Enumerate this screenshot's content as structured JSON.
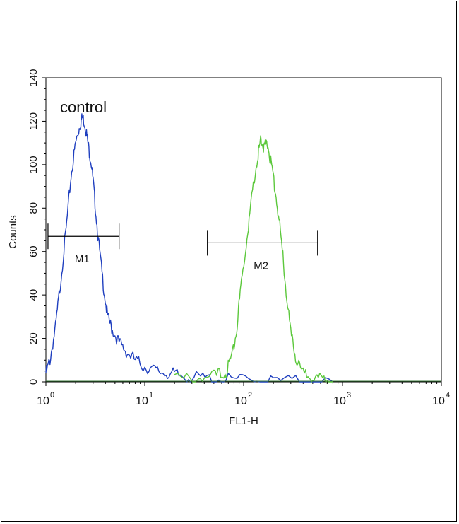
{
  "chart_data": {
    "type": "line",
    "annotation": "control",
    "xlabel": "FL1-H",
    "ylabel": "Counts",
    "x_scale": "log",
    "xlim": [
      1,
      10000
    ],
    "ylim": [
      0,
      140
    ],
    "x_ticks": [
      {
        "base": "10",
        "exp": "0",
        "value": 1
      },
      {
        "base": "10",
        "exp": "1",
        "value": 10
      },
      {
        "base": "10",
        "exp": "2",
        "value": 100
      },
      {
        "base": "10",
        "exp": "3",
        "value": 1000
      },
      {
        "base": "10",
        "exp": "4",
        "value": 10000
      }
    ],
    "y_ticks": [
      "0",
      "20",
      "40",
      "60",
      "80",
      "100",
      "120",
      "140"
    ],
    "grid": false,
    "series": [
      {
        "color": "#1f3fbf",
        "points": [
          [
            1.0,
            4
          ],
          [
            1.1,
            10
          ],
          [
            1.25,
            25
          ],
          [
            1.4,
            45
          ],
          [
            1.6,
            70
          ],
          [
            1.8,
            95
          ],
          [
            2.0,
            110
          ],
          [
            2.2,
            118
          ],
          [
            2.35,
            122
          ],
          [
            2.5,
            118
          ],
          [
            2.7,
            108
          ],
          [
            2.9,
            100
          ],
          [
            3.1,
            85
          ],
          [
            3.4,
            65
          ],
          [
            3.8,
            45
          ],
          [
            4.2,
            30
          ],
          [
            4.7,
            24
          ],
          [
            5.5,
            18
          ],
          [
            6.5,
            14
          ],
          [
            8,
            10
          ],
          [
            10,
            7
          ],
          [
            13,
            5
          ],
          [
            17,
            4
          ],
          [
            22,
            3
          ],
          [
            30,
            2
          ],
          [
            45,
            1.5
          ],
          [
            70,
            1
          ],
          [
            120,
            0.8
          ],
          [
            200,
            0.5
          ],
          [
            400,
            0.3
          ],
          [
            800,
            0
          ]
        ]
      },
      {
        "color": "#5cc83c",
        "points": [
          [
            20,
            1
          ],
          [
            35,
            2
          ],
          [
            50,
            2.5
          ],
          [
            65,
            4
          ],
          [
            75,
            10
          ],
          [
            85,
            25
          ],
          [
            95,
            45
          ],
          [
            110,
            70
          ],
          [
            125,
            90
          ],
          [
            140,
            105
          ],
          [
            150,
            112
          ],
          [
            160,
            108
          ],
          [
            175,
            110
          ],
          [
            190,
            100
          ],
          [
            210,
            88
          ],
          [
            235,
            70
          ],
          [
            265,
            45
          ],
          [
            300,
            22
          ],
          [
            340,
            10
          ],
          [
            400,
            4
          ],
          [
            500,
            2
          ],
          [
            650,
            1
          ],
          [
            800,
            0
          ]
        ]
      }
    ],
    "markers": [
      {
        "label": "M1",
        "x_start": 1.05,
        "x_end": 5.5,
        "y": 67
      },
      {
        "label": "M2",
        "x_start": 43,
        "x_end": 560,
        "y": 64
      }
    ]
  }
}
